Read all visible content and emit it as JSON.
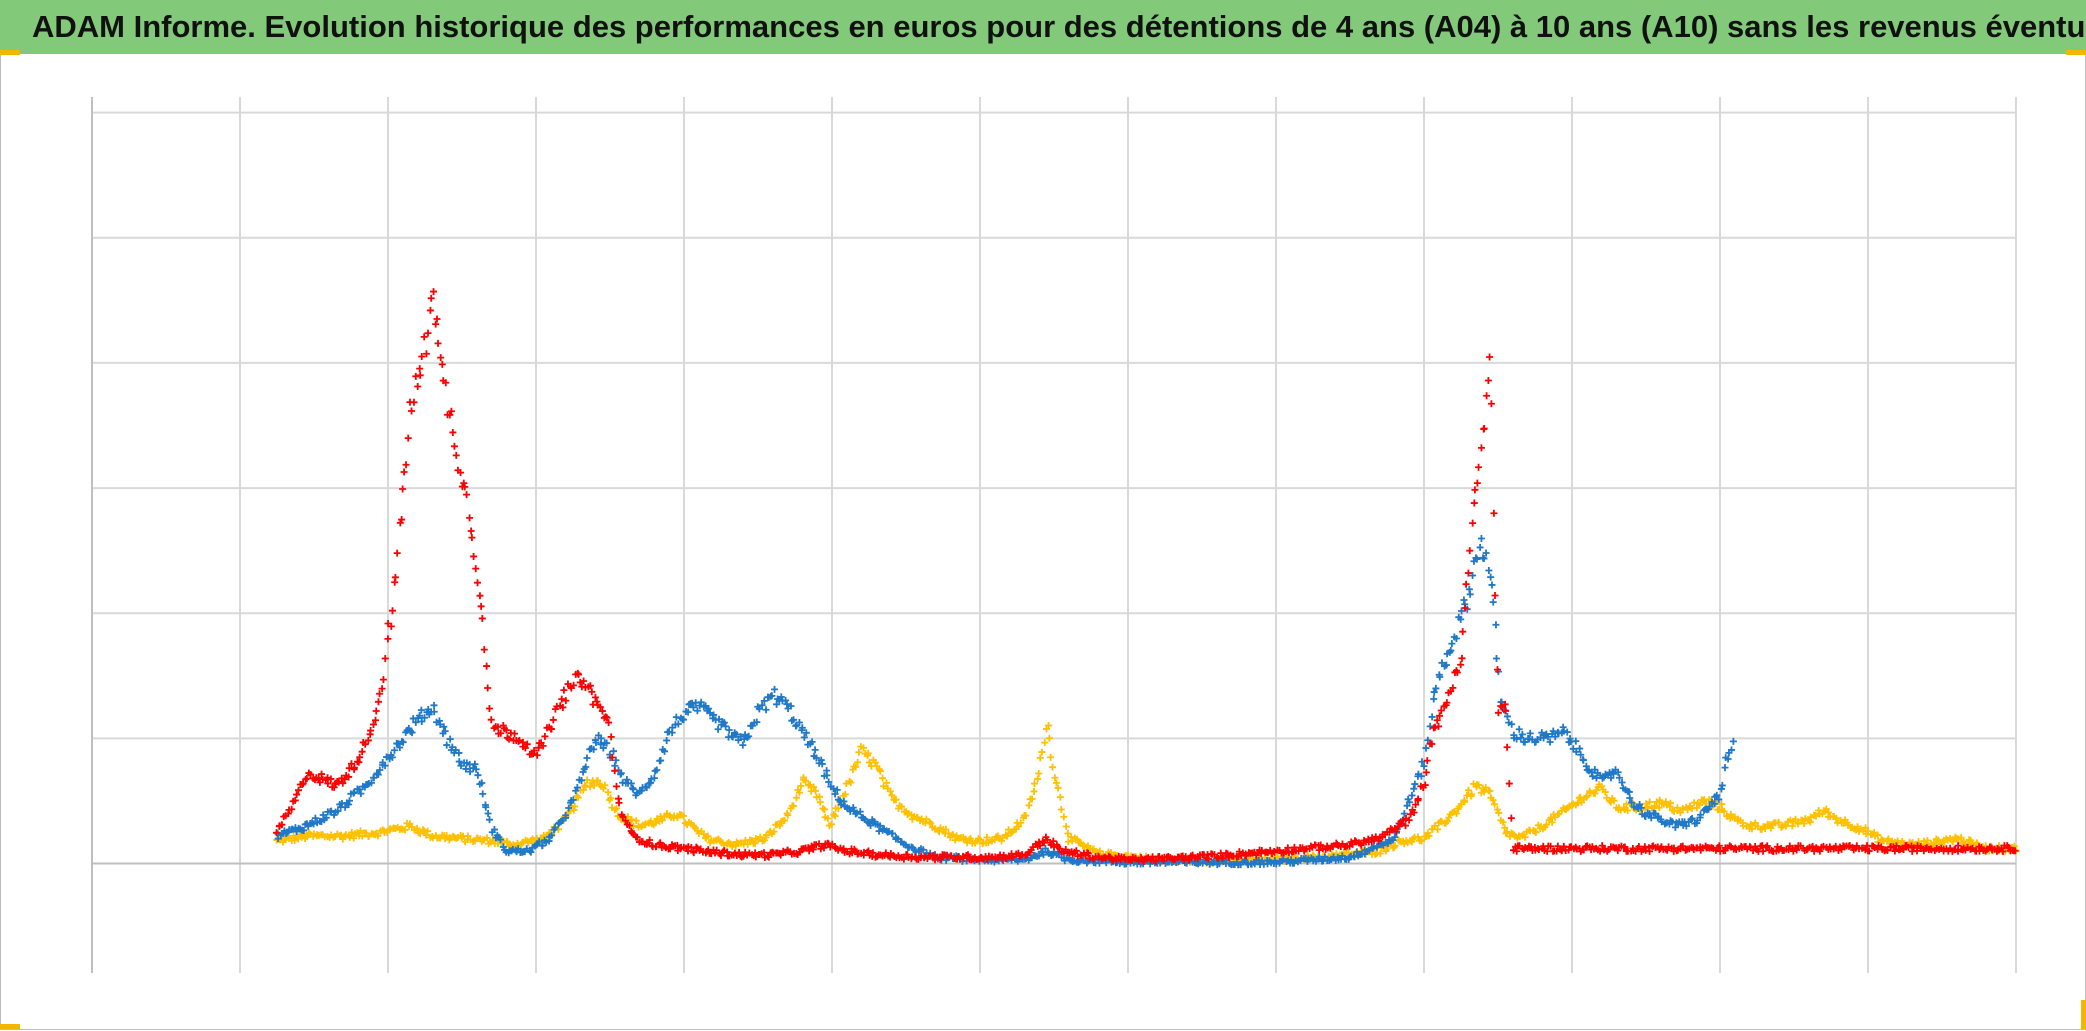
{
  "header": {
    "title": "ADAM Informe. Evolution historique des performances en euros pour des détentions de 4 ans (A04) à 10 ans (A10) sans les revenus éventuels"
  },
  "colors": {
    "header_bg": "#82c97a",
    "grid": "#d9d9d9",
    "axis": "#bfbfbf",
    "corner_marks": "#f2b705"
  },
  "chart_data": {
    "type": "scatter",
    "marker": "plus",
    "grid": true,
    "legend": "none",
    "xlim": [
      0,
      13
    ],
    "ylim": [
      -0.875,
      6.125
    ],
    "series": [
      {
        "color": "#ff0000",
        "points": [
          [
            1.25,
            0.25
          ],
          [
            1.35,
            0.45
          ],
          [
            1.45,
            0.72
          ],
          [
            1.55,
            0.68
          ],
          [
            1.65,
            0.62
          ],
          [
            1.75,
            0.75
          ],
          [
            1.85,
            0.95
          ],
          [
            1.95,
            1.35
          ],
          [
            2.05,
            2.25
          ],
          [
            2.15,
            3.6
          ],
          [
            2.25,
            4.1
          ],
          [
            2.3,
            4.7
          ],
          [
            2.35,
            4.0
          ],
          [
            2.45,
            3.4
          ],
          [
            2.55,
            2.8
          ],
          [
            2.62,
            2.2
          ],
          [
            2.7,
            1.1
          ],
          [
            2.8,
            1.05
          ],
          [
            2.9,
            1.0
          ],
          [
            3.0,
            0.85
          ],
          [
            3.1,
            1.1
          ],
          [
            3.2,
            1.35
          ],
          [
            3.3,
            1.5
          ],
          [
            3.4,
            1.3
          ],
          [
            3.5,
            1.1
          ],
          [
            3.55,
            0.5
          ],
          [
            3.65,
            0.22
          ],
          [
            3.8,
            0.15
          ],
          [
            4.0,
            0.12
          ],
          [
            4.2,
            0.09
          ],
          [
            4.4,
            0.07
          ],
          [
            4.6,
            0.07
          ],
          [
            4.8,
            0.1
          ],
          [
            4.95,
            0.15
          ],
          [
            5.1,
            0.1
          ],
          [
            5.3,
            0.07
          ],
          [
            5.6,
            0.05
          ],
          [
            5.9,
            0.05
          ],
          [
            6.1,
            0.05
          ],
          [
            6.3,
            0.07
          ],
          [
            6.45,
            0.2
          ],
          [
            6.55,
            0.1
          ],
          [
            6.8,
            0.05
          ],
          [
            7.0,
            0.03
          ],
          [
            7.3,
            0.04
          ],
          [
            7.6,
            0.06
          ],
          [
            7.9,
            0.09
          ],
          [
            8.2,
            0.12
          ],
          [
            8.5,
            0.15
          ],
          [
            8.7,
            0.2
          ],
          [
            8.9,
            0.35
          ],
          [
            9.0,
            0.65
          ],
          [
            9.05,
            1.0
          ],
          [
            9.15,
            1.3
          ],
          [
            9.25,
            1.6
          ],
          [
            9.32,
            2.6
          ],
          [
            9.38,
            3.3
          ],
          [
            9.45,
            4.0
          ],
          [
            9.5,
            1.2
          ],
          [
            9.55,
            1.3
          ],
          [
            9.6,
            0.12
          ],
          [
            10.0,
            0.12
          ],
          [
            10.5,
            0.12
          ],
          [
            11.0,
            0.12
          ],
          [
            11.5,
            0.12
          ],
          [
            12.0,
            0.12
          ],
          [
            12.5,
            0.12
          ],
          [
            13.0,
            0.12
          ]
        ]
      },
      {
        "color": "#1f78c8",
        "points": [
          [
            1.25,
            0.22
          ],
          [
            1.45,
            0.3
          ],
          [
            1.65,
            0.42
          ],
          [
            1.85,
            0.62
          ],
          [
            2.0,
            0.85
          ],
          [
            2.1,
            1.0
          ],
          [
            2.2,
            1.15
          ],
          [
            2.3,
            1.25
          ],
          [
            2.4,
            1.0
          ],
          [
            2.5,
            0.8
          ],
          [
            2.6,
            0.75
          ],
          [
            2.7,
            0.28
          ],
          [
            2.8,
            0.1
          ],
          [
            2.95,
            0.1
          ],
          [
            3.1,
            0.2
          ],
          [
            3.25,
            0.5
          ],
          [
            3.4,
            1.0
          ],
          [
            3.5,
            0.9
          ],
          [
            3.6,
            0.65
          ],
          [
            3.7,
            0.55
          ],
          [
            3.8,
            0.72
          ],
          [
            3.9,
            1.05
          ],
          [
            4.0,
            1.2
          ],
          [
            4.1,
            1.25
          ],
          [
            4.2,
            1.15
          ],
          [
            4.3,
            1.05
          ],
          [
            4.4,
            0.95
          ],
          [
            4.5,
            1.2
          ],
          [
            4.6,
            1.35
          ],
          [
            4.7,
            1.25
          ],
          [
            4.8,
            1.05
          ],
          [
            4.9,
            0.85
          ],
          [
            5.0,
            0.6
          ],
          [
            5.1,
            0.45
          ],
          [
            5.3,
            0.3
          ],
          [
            5.5,
            0.15
          ],
          [
            5.7,
            0.05
          ],
          [
            6.0,
            0.03
          ],
          [
            6.3,
            0.03
          ],
          [
            6.45,
            0.1
          ],
          [
            6.6,
            0.03
          ],
          [
            7.0,
            0.01
          ],
          [
            7.5,
            0.01
          ],
          [
            8.0,
            0.01
          ],
          [
            8.5,
            0.05
          ],
          [
            8.8,
            0.2
          ],
          [
            9.0,
            0.8
          ],
          [
            9.05,
            1.2
          ],
          [
            9.1,
            1.5
          ],
          [
            9.2,
            1.8
          ],
          [
            9.3,
            2.15
          ],
          [
            9.38,
            2.6
          ],
          [
            9.45,
            2.3
          ],
          [
            9.52,
            1.3
          ],
          [
            9.6,
            1.05
          ],
          [
            9.7,
            1.0
          ],
          [
            9.85,
            1.0
          ],
          [
            9.95,
            1.05
          ],
          [
            10.1,
            0.8
          ],
          [
            10.2,
            0.65
          ],
          [
            10.3,
            0.75
          ],
          [
            10.4,
            0.5
          ],
          [
            10.5,
            0.4
          ],
          [
            10.7,
            0.3
          ],
          [
            10.85,
            0.35
          ],
          [
            11.0,
            0.55
          ],
          [
            11.05,
            0.85
          ],
          [
            11.1,
            0.95
          ]
        ]
      },
      {
        "color": "#ffc000",
        "points": [
          [
            1.25,
            0.18
          ],
          [
            1.45,
            0.22
          ],
          [
            1.7,
            0.22
          ],
          [
            1.95,
            0.25
          ],
          [
            2.15,
            0.3
          ],
          [
            2.3,
            0.22
          ],
          [
            2.5,
            0.2
          ],
          [
            2.7,
            0.18
          ],
          [
            2.85,
            0.15
          ],
          [
            3.05,
            0.2
          ],
          [
            3.2,
            0.35
          ],
          [
            3.35,
            0.65
          ],
          [
            3.45,
            0.65
          ],
          [
            3.55,
            0.4
          ],
          [
            3.7,
            0.3
          ],
          [
            3.85,
            0.35
          ],
          [
            3.95,
            0.4
          ],
          [
            4.15,
            0.2
          ],
          [
            4.35,
            0.15
          ],
          [
            4.55,
            0.2
          ],
          [
            4.7,
            0.38
          ],
          [
            4.8,
            0.65
          ],
          [
            4.9,
            0.55
          ],
          [
            4.98,
            0.3
          ],
          [
            5.1,
            0.6
          ],
          [
            5.2,
            0.9
          ],
          [
            5.3,
            0.78
          ],
          [
            5.4,
            0.52
          ],
          [
            5.55,
            0.38
          ],
          [
            5.7,
            0.3
          ],
          [
            5.85,
            0.2
          ],
          [
            6.0,
            0.18
          ],
          [
            6.15,
            0.2
          ],
          [
            6.3,
            0.35
          ],
          [
            6.4,
            0.72
          ],
          [
            6.45,
            1.15
          ],
          [
            6.5,
            0.75
          ],
          [
            6.6,
            0.2
          ],
          [
            6.8,
            0.08
          ],
          [
            7.2,
            0.03
          ],
          [
            7.6,
            0.02
          ],
          [
            8.0,
            0.03
          ],
          [
            8.4,
            0.06
          ],
          [
            8.7,
            0.1
          ],
          [
            8.85,
            0.18
          ],
          [
            9.0,
            0.2
          ],
          [
            9.1,
            0.3
          ],
          [
            9.2,
            0.4
          ],
          [
            9.35,
            0.62
          ],
          [
            9.45,
            0.55
          ],
          [
            9.55,
            0.25
          ],
          [
            9.65,
            0.2
          ],
          [
            9.8,
            0.3
          ],
          [
            9.95,
            0.42
          ],
          [
            10.1,
            0.55
          ],
          [
            10.2,
            0.6
          ],
          [
            10.3,
            0.45
          ],
          [
            10.45,
            0.45
          ],
          [
            10.6,
            0.48
          ],
          [
            10.75,
            0.42
          ],
          [
            10.9,
            0.5
          ],
          [
            11.0,
            0.45
          ],
          [
            11.1,
            0.35
          ],
          [
            11.2,
            0.3
          ],
          [
            11.4,
            0.3
          ],
          [
            11.6,
            0.35
          ],
          [
            11.7,
            0.42
          ],
          [
            11.8,
            0.35
          ],
          [
            11.95,
            0.28
          ],
          [
            12.1,
            0.18
          ],
          [
            12.3,
            0.15
          ],
          [
            12.45,
            0.17
          ],
          [
            12.6,
            0.2
          ],
          [
            12.8,
            0.12
          ],
          [
            13.0,
            0.12
          ]
        ]
      }
    ]
  }
}
